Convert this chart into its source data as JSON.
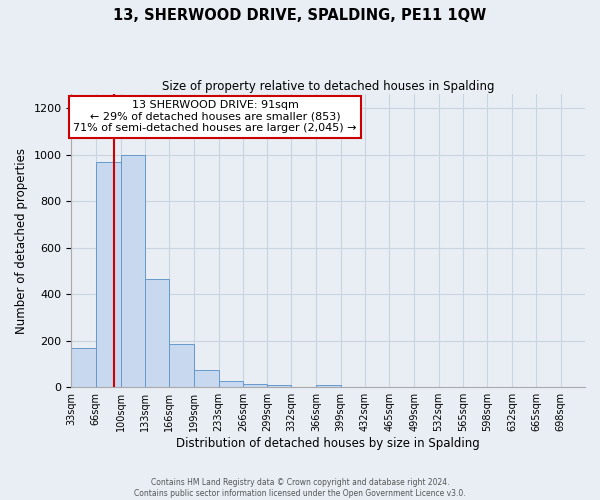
{
  "title": "13, SHERWOOD DRIVE, SPALDING, PE11 1QW",
  "subtitle": "Size of property relative to detached houses in Spalding",
  "xlabel": "Distribution of detached houses by size in Spalding",
  "ylabel": "Number of detached properties",
  "bar_labels": [
    "33sqm",
    "66sqm",
    "100sqm",
    "133sqm",
    "166sqm",
    "199sqm",
    "233sqm",
    "266sqm",
    "299sqm",
    "332sqm",
    "366sqm",
    "399sqm",
    "432sqm",
    "465sqm",
    "499sqm",
    "532sqm",
    "565sqm",
    "598sqm",
    "632sqm",
    "665sqm",
    "698sqm"
  ],
  "bar_values": [
    170,
    970,
    1000,
    465,
    185,
    75,
    25,
    15,
    10,
    0,
    10,
    0,
    0,
    0,
    0,
    0,
    0,
    0,
    0,
    0,
    0
  ],
  "bar_color": "#c8d8ee",
  "bar_edge_color": "#6699cc",
  "ylim": [
    0,
    1260
  ],
  "yticks": [
    0,
    200,
    400,
    600,
    800,
    1000,
    1200
  ],
  "vline_x": 91,
  "vline_color": "#cc0000",
  "annotation_title": "13 SHERWOOD DRIVE: 91sqm",
  "annotation_line1": "← 29% of detached houses are smaller (853)",
  "annotation_line2": "71% of semi-detached houses are larger (2,045) →",
  "annotation_box_color": "#ffffff",
  "annotation_box_edge": "#cc0000",
  "footer1": "Contains HM Land Registry data © Crown copyright and database right 2024.",
  "footer2": "Contains public sector information licensed under the Open Government Licence v3.0.",
  "bin_edges": [
    33,
    66,
    100,
    133,
    166,
    199,
    233,
    266,
    299,
    332,
    366,
    399,
    432,
    465,
    499,
    532,
    565,
    598,
    632,
    665,
    698,
    731
  ],
  "grid_color": "#c8d4e0",
  "background_color": "#e8eef4"
}
